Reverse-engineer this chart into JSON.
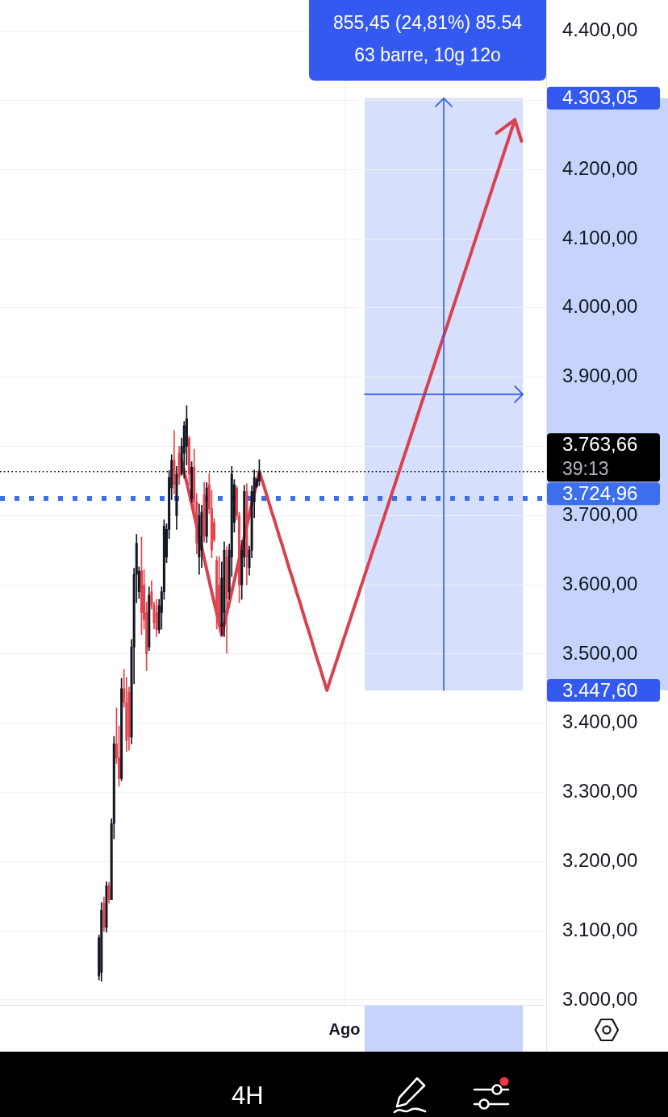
{
  "chart_data": {
    "type": "candlestick",
    "categories": [
      null,
      null,
      null,
      null,
      null,
      null,
      null,
      null,
      null,
      null,
      null,
      null,
      null,
      null,
      null,
      null,
      null,
      null,
      null,
      null,
      null,
      null,
      null,
      null,
      null,
      null,
      null,
      null,
      null,
      null,
      null,
      null,
      null,
      null,
      null,
      null,
      null,
      null,
      null,
      null,
      null,
      null,
      null,
      null,
      null,
      null,
      null,
      null,
      null,
      null,
      null,
      null,
      null,
      null,
      null,
      null,
      null,
      null,
      null,
      null,
      null,
      null,
      null,
      null,
      null,
      null,
      null,
      null,
      null,
      null,
      null,
      null,
      null,
      null,
      null,
      null,
      null,
      null,
      null,
      null,
      null,
      null,
      null,
      null,
      null,
      null,
      null,
      null,
      null,
      null,
      null,
      null,
      null,
      null,
      null,
      null,
      null,
      null,
      null,
      null,
      null,
      null,
      null,
      null,
      null,
      null,
      null,
      null,
      null,
      null,
      null,
      null,
      null,
      null,
      null,
      null,
      null,
      null,
      null,
      null,
      null,
      null,
      null,
      null,
      null,
      null,
      null,
      null,
      null,
      null,
      null,
      null,
      null,
      null,
      null,
      null,
      null,
      "Ago",
      null,
      null,
      null,
      null,
      null,
      null,
      null,
      null,
      null,
      null,
      null,
      null,
      null,
      null,
      null,
      null,
      null,
      null,
      null,
      null,
      null,
      null,
      null,
      null,
      null,
      null,
      null,
      null,
      null,
      null,
      null,
      null,
      null,
      null,
      null,
      null,
      null,
      null,
      null,
      null,
      null,
      null,
      null,
      null,
      null,
      null,
      null,
      null,
      null,
      null,
      null,
      null,
      null,
      null,
      null,
      null,
      null,
      null,
      null,
      null,
      null,
      null,
      null,
      null,
      null,
      null,
      null,
      null,
      null,
      null,
      null,
      null,
      null,
      null,
      null,
      null,
      null,
      null,
      null,
      null
    ],
    "ohlc": [
      null,
      null,
      null,
      null,
      null,
      null,
      null,
      null,
      null,
      null,
      null,
      null,
      null,
      null,
      null,
      null,
      null,
      null,
      null,
      null,
      null,
      null,
      null,
      null,
      null,
      null,
      null,
      null,
      null,
      null,
      null,
      null,
      null,
      null,
      null,
      null,
      null,
      null,
      null,
      [
        3035,
        3094,
        3029,
        3090
      ],
      [
        3040,
        3141,
        3027,
        3130
      ],
      [
        3140,
        3149,
        3099,
        3105
      ],
      [
        3105,
        3171,
        3098,
        3165
      ],
      [
        3165,
        3170,
        3140,
        3145
      ],
      [
        3145,
        3262,
        3145,
        3255
      ],
      [
        3255,
        3381,
        3233,
        3370
      ],
      [
        3370,
        3422,
        3342,
        3350
      ],
      [
        3350,
        3396,
        3309,
        3320
      ],
      [
        3320,
        3465,
        3317,
        3450
      ],
      [
        3450,
        3478,
        3423,
        3430
      ],
      [
        3430,
        3466,
        3359,
        3375
      ],
      [
        3445,
        3452,
        3361,
        3380
      ],
      [
        3380,
        3521,
        3370,
        3510
      ],
      [
        3510,
        3624,
        3457,
        3615
      ],
      [
        3615,
        3673,
        3574,
        3660
      ],
      [
        3590,
        3626,
        3580,
        3620
      ],
      [
        3620,
        3669,
        3528,
        3560
      ],
      [
        3600,
        3622,
        3536,
        3550
      ],
      [
        3560,
        3575,
        3476,
        3500
      ],
      [
        3510,
        3597,
        3505,
        3585
      ],
      [
        3590,
        3606,
        3565,
        3570
      ],
      [
        3570,
        3575,
        3536,
        3545
      ],
      [
        3560,
        3579,
        3525,
        3535
      ],
      [
        3535,
        3579,
        3530,
        3570
      ],
      [
        3560,
        3597,
        3536,
        3590
      ],
      [
        3590,
        3694,
        3579,
        3685
      ],
      [
        3640,
        3688,
        3632,
        3680
      ],
      [
        3680,
        3765,
        3667,
        3755
      ],
      [
        3740,
        3788,
        3723,
        3780
      ],
      [
        3780,
        3823,
        3731,
        3745
      ],
      [
        3700,
        3771,
        3680,
        3760
      ],
      [
        3790,
        3800,
        3745,
        3755
      ],
      [
        3760,
        3812,
        3758,
        3800
      ],
      [
        3790,
        3836,
        3754,
        3830
      ],
      [
        3800,
        3859,
        3773,
        3840
      ],
      [
        3812,
        3815,
        3744,
        3760
      ],
      [
        3725,
        3778,
        3719,
        3770
      ],
      [
        3770,
        3796,
        3708,
        3720
      ],
      [
        3720,
        3732,
        3645,
        3660
      ],
      [
        3640,
        3717,
        3615,
        3700
      ],
      [
        3650,
        3715,
        3625,
        3705
      ],
      [
        3730,
        3748,
        3662,
        3670
      ],
      [
        3670,
        3748,
        3661,
        3740
      ],
      [
        3745,
        3761,
        3703,
        3710
      ],
      [
        3710,
        3737,
        3639,
        3650
      ],
      [
        3690,
        3696,
        3662,
        3665
      ],
      [
        3635,
        3641,
        3536,
        3560
      ],
      [
        3600,
        3641,
        3545,
        3550
      ],
      [
        3540,
        3633,
        3527,
        3610
      ],
      [
        3560,
        3662,
        3525,
        3650
      ],
      [
        3640,
        3655,
        3501,
        3580
      ],
      [
        3590,
        3659,
        3579,
        3650
      ],
      [
        3640,
        3771,
        3612,
        3760
      ],
      [
        3690,
        3752,
        3676,
        3745
      ],
      [
        3740,
        3743,
        3694,
        3700
      ],
      [
        3700,
        3705,
        3574,
        3600
      ],
      [
        3600,
        3664,
        3579,
        3650
      ],
      [
        3640,
        3744,
        3626,
        3735
      ],
      [
        3735,
        3746,
        3600,
        3640
      ],
      [
        3625,
        3656,
        3614,
        3650
      ],
      [
        3650,
        3743,
        3639,
        3735
      ],
      [
        3720,
        3766,
        3697,
        3755
      ],
      [
        3742,
        3754,
        3740,
        3752
      ],
      [
        3750,
        3781,
        3743,
        3763.66
      ],
      null,
      null,
      null,
      null,
      null,
      null,
      null,
      null,
      null,
      null,
      null,
      null,
      null,
      null,
      null,
      null,
      null,
      null,
      null,
      null,
      null,
      null,
      null,
      null,
      null,
      null,
      null,
      null,
      null,
      null,
      null,
      null,
      null,
      null,
      null,
      null,
      null,
      null,
      null,
      null,
      null,
      null,
      null,
      null,
      null,
      null,
      null,
      null,
      null,
      null,
      null,
      null,
      null,
      null,
      null,
      null,
      null,
      null,
      null,
      null,
      null,
      null,
      null,
      null,
      null,
      null,
      null,
      null,
      null,
      null,
      null,
      null,
      null,
      null,
      null,
      null,
      null,
      null,
      null,
      null,
      null,
      null,
      null,
      null,
      null,
      null,
      null,
      null,
      null,
      null,
      null,
      null,
      null,
      null,
      null,
      null,
      null,
      null,
      null,
      null,
      null,
      null,
      null,
      null,
      null,
      null,
      null,
      null,
      null,
      null,
      null,
      null,
      null,
      null
    ],
    "colors": [
      null,
      null,
      null,
      null,
      null,
      null,
      null,
      null,
      null,
      null,
      null,
      null,
      null,
      null,
      null,
      null,
      null,
      null,
      null,
      null,
      null,
      null,
      null,
      null,
      null,
      null,
      null,
      null,
      null,
      null,
      null,
      null,
      null,
      null,
      null,
      null,
      null,
      null,
      null,
      "#131722",
      "#131722",
      "#e4434d",
      "#131722",
      "#e4434d",
      "#131722",
      "#131722",
      "#e4434d",
      "#e4434d",
      "#131722",
      "#e4434d",
      "#e4434d",
      "#e4434d",
      "#131722",
      "#131722",
      "#131722",
      "#131722",
      "#e4434d",
      "#e4434d",
      "#e4434d",
      "#131722",
      "#e4434d",
      "#e4434d",
      "#e4434d",
      "#131722",
      "#131722",
      "#131722",
      "#131722",
      "#131722",
      "#131722",
      "#e4434d",
      "#131722",
      "#e4434d",
      "#131722",
      "#131722",
      "#131722",
      "#e4434d",
      "#131722",
      "#e4434d",
      "#e4434d",
      "#131722",
      "#131722",
      "#e4434d",
      "#131722",
      "#e4434d",
      "#e4434d",
      "#e4434d",
      "#e4434d",
      "#e4434d",
      "#131722",
      "#131722",
      "#e4434d",
      "#131722",
      "#131722",
      "#131722",
      "#e4434d",
      "#e4434d",
      "#131722",
      "#131722",
      "#e4434d",
      "#131722",
      "#131722",
      "#131722",
      "#131722",
      "#131722",
      null,
      null,
      null,
      null,
      null,
      null,
      null,
      null,
      null,
      null,
      null,
      null,
      null,
      null,
      null,
      null,
      null,
      null,
      null,
      null,
      null,
      null,
      null,
      null,
      null,
      null,
      null,
      null,
      null,
      null,
      null,
      null,
      null,
      null,
      null,
      null,
      null,
      null,
      null,
      null,
      null,
      null,
      null,
      null,
      null,
      null,
      null,
      null,
      null,
      null,
      null,
      null,
      null,
      null,
      null,
      null,
      null,
      null,
      null,
      null,
      null,
      null,
      null,
      null,
      null,
      null,
      null,
      null,
      null,
      null,
      null,
      null,
      null,
      null,
      null,
      null,
      null,
      null,
      null,
      null,
      null,
      null,
      null,
      null,
      null,
      null,
      null,
      null,
      null,
      null,
      null,
      null,
      null,
      null,
      null,
      null,
      null,
      null,
      null,
      null,
      null,
      null,
      null,
      null,
      null,
      null,
      null,
      null,
      null,
      null,
      null,
      null,
      null,
      null
    ],
    "series": [
      {
        "type": "line",
        "color": "#d8424f",
        "values": [
          null,
          null,
          null,
          null,
          null,
          null,
          null,
          null,
          null,
          null,
          null,
          null,
          null,
          null,
          null,
          null,
          null,
          null,
          null,
          null,
          null,
          null,
          null,
          null,
          null,
          null,
          null,
          null,
          null,
          null,
          null,
          null,
          null,
          null,
          null,
          null,
          null,
          null,
          null,
          null,
          null,
          null,
          null,
          null,
          null,
          null,
          null,
          null,
          null,
          null,
          null,
          null,
          null,
          null,
          null,
          null,
          null,
          null,
          null,
          null,
          null,
          null,
          null,
          null,
          null,
          null,
          null,
          null,
          null,
          null,
          null,
          null,
          3780,
          3764,
          3748,
          3733,
          3717,
          3701,
          3685,
          3669,
          3654,
          3638,
          3622,
          3606,
          3590,
          3574,
          3559,
          3543,
          3527,
          3543,
          3559,
          3574,
          3590,
          3606,
          3622,
          3638,
          3653,
          3669,
          3685,
          3701,
          3717,
          3732,
          3748,
          3764,
          3752,
          3741,
          3729,
          3717,
          3705,
          3694,
          3682,
          3670,
          3659,
          3647,
          3635,
          3623,
          3612,
          3600,
          3588,
          3577,
          3565,
          3553,
          3541,
          3530,
          3518,
          3506,
          3494,
          3483,
          3471,
          3459,
          3447.6,
          3459,
          3470,
          3481,
          3492,
          3503,
          3514,
          3525,
          3536,
          3547,
          3558,
          3569,
          3580,
          3591,
          3602,
          3613,
          3624,
          3635,
          3646,
          3657,
          3667,
          3678,
          3689,
          3700,
          3711,
          3722,
          3733,
          3744,
          3755,
          3766,
          3777,
          3788,
          3799,
          3810,
          3821,
          3832,
          3843,
          3854,
          3865,
          3876,
          3887,
          3898,
          3909,
          3920,
          3931,
          3942,
          3953,
          3964,
          3975,
          3986,
          3997,
          4008,
          4019,
          4030,
          4041,
          4052,
          4063,
          4074,
          4085,
          4096,
          4107,
          4118,
          4129,
          4140,
          4151,
          4162,
          4173,
          4184,
          4195,
          4206,
          4217,
          4228,
          4239,
          4250,
          4261,
          4272,
          null,
          null,
          null,
          null,
          null,
          null,
          null,
          null,
          null,
          null,
          null,
          null
        ]
      }
    ],
    "ylim": [
      2993,
      4445
    ],
    "yticks": [
      {
        "value": 3000,
        "label": "3.000,00"
      },
      {
        "value": 3100,
        "label": "3.100,00"
      },
      {
        "value": 3200,
        "label": "3.200,00"
      },
      {
        "value": 3300,
        "label": "3.300,00"
      },
      {
        "value": 3400,
        "label": "3.400,00"
      },
      {
        "value": 3500,
        "label": "3.500,00"
      },
      {
        "value": 3600,
        "label": "3.600,00"
      },
      {
        "value": 3700,
        "label": "3.700,00"
      },
      {
        "value": 3800,
        "label": null
      },
      {
        "value": 3900,
        "label": "3.900,00"
      },
      {
        "value": 4000,
        "label": "4.000,00"
      },
      {
        "value": 4100,
        "label": "4.100,00"
      },
      {
        "value": 4200,
        "label": "4.200,00"
      },
      {
        "value": 4300,
        "label": null
      },
      {
        "value": 4400,
        "label": "4.400,00"
      }
    ],
    "grid": true,
    "ref_lines": [
      {
        "axis": "y",
        "value": 3763.66,
        "label": "3.763,66",
        "color": "#000000",
        "line_style": "dotted"
      },
      {
        "axis": "y",
        "value": 3724.96,
        "label": "3.724,96",
        "color": "#3d6fec",
        "line_style": "dotted"
      }
    ],
    "bands": [
      {
        "axis": "y",
        "from": 3447.6,
        "to": 4303.05,
        "color": "#c6d4fb"
      }
    ],
    "annotations": [
      "855,45 (24,81%) 85.54",
      "63 barre, 10g 12o",
      "4.303,05",
      "3.447,60",
      "39:13",
      "4H"
    ]
  }
}
